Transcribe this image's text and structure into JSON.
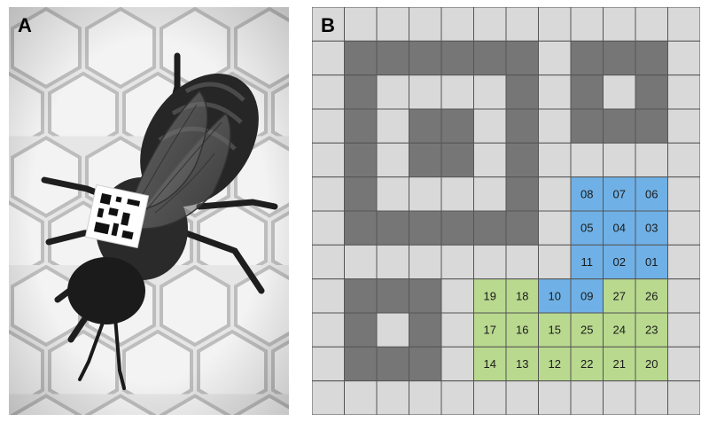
{
  "panel_a": {
    "label": "A"
  },
  "panel_b": {
    "label": "B",
    "grid_rows": 12,
    "grid_cols": 12,
    "colors": {
      "light": "#d9d9d9",
      "dark": "#767676",
      "blue": "#6fb1e6",
      "green": "#b9d98f",
      "line": "#555555"
    },
    "cells": [
      "LLLLLLLLLLLL",
      "LDDDDDDLDDDL",
      "LDLLLLDLDLDL",
      "LDLDDLDLDDDL",
      "LDLDDLDLLLLL",
      "LDLLLLDLBBBL",
      "LDDDDDDLBBBL",
      "LLLLLLLLBBBL",
      "LDDDLGGBBGGL",
      "LDLDLGGGGGGL",
      "LDDDLGGGGGGL",
      "LLLLLLLLLLLL"
    ],
    "numbers": [
      {
        "r": 5,
        "c": 8,
        "t": "08"
      },
      {
        "r": 5,
        "c": 9,
        "t": "07"
      },
      {
        "r": 5,
        "c": 10,
        "t": "06"
      },
      {
        "r": 6,
        "c": 8,
        "t": "05"
      },
      {
        "r": 6,
        "c": 9,
        "t": "04"
      },
      {
        "r": 6,
        "c": 10,
        "t": "03"
      },
      {
        "r": 7,
        "c": 8,
        "t": "11"
      },
      {
        "r": 7,
        "c": 9,
        "t": "02"
      },
      {
        "r": 7,
        "c": 10,
        "t": "01"
      },
      {
        "r": 8,
        "c": 5,
        "t": "19"
      },
      {
        "r": 8,
        "c": 6,
        "t": "18"
      },
      {
        "r": 8,
        "c": 7,
        "t": "10"
      },
      {
        "r": 8,
        "c": 8,
        "t": "09"
      },
      {
        "r": 8,
        "c": 9,
        "t": "27"
      },
      {
        "r": 8,
        "c": 10,
        "t": "26"
      },
      {
        "r": 9,
        "c": 5,
        "t": "17"
      },
      {
        "r": 9,
        "c": 6,
        "t": "16"
      },
      {
        "r": 9,
        "c": 7,
        "t": "15"
      },
      {
        "r": 9,
        "c": 8,
        "t": "25"
      },
      {
        "r": 9,
        "c": 9,
        "t": "24"
      },
      {
        "r": 9,
        "c": 10,
        "t": "23"
      },
      {
        "r": 10,
        "c": 5,
        "t": "14"
      },
      {
        "r": 10,
        "c": 6,
        "t": "13"
      },
      {
        "r": 10,
        "c": 7,
        "t": "12"
      },
      {
        "r": 10,
        "c": 8,
        "t": "22"
      },
      {
        "r": 10,
        "c": 9,
        "t": "21"
      },
      {
        "r": 10,
        "c": 10,
        "t": "20"
      }
    ]
  }
}
